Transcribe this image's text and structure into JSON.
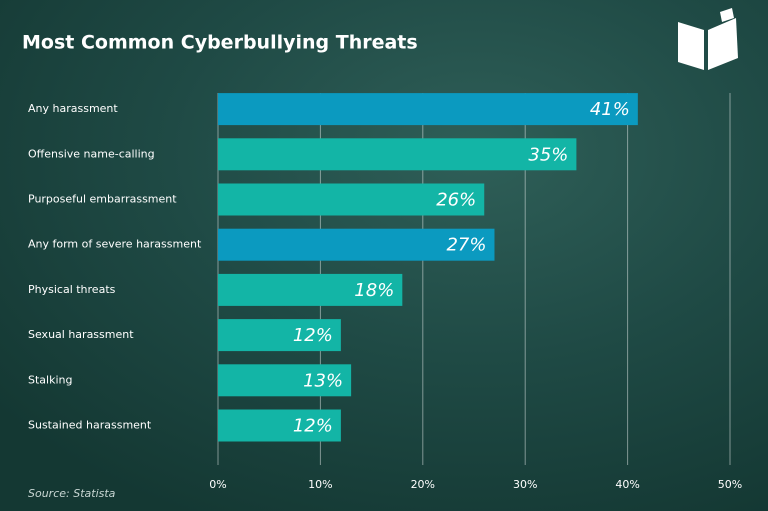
{
  "chart_data": {
    "type": "bar",
    "orientation": "horizontal",
    "title": "Most Common Cyberbullying Threats",
    "source": "Source: Statista",
    "categories": [
      "Any harassment",
      "Offensive name-calling",
      "Purposeful embarrassment",
      "Any form of severe harassment",
      "Physical threats",
      "Sexual harassment",
      "Stalking",
      "Sustained harassment"
    ],
    "values": [
      41,
      35,
      26,
      27,
      18,
      12,
      13,
      12
    ],
    "value_labels": [
      "41%",
      "35%",
      "26%",
      "27%",
      "18%",
      "12%",
      "13%",
      "12%"
    ],
    "colors": [
      "#0b9ac0",
      "#13b5a6",
      "#13b5a6",
      "#0b9ac0",
      "#13b5a6",
      "#13b5a6",
      "#13b5a6",
      "#13b5a6"
    ],
    "xlim": [
      0,
      50
    ],
    "xticks": [
      {
        "value": 0,
        "label": "0%"
      },
      {
        "value": 10,
        "label": "10%"
      },
      {
        "value": 20,
        "label": "20%"
      },
      {
        "value": 30,
        "label": "30%"
      },
      {
        "value": 40,
        "label": "40%"
      },
      {
        "value": 50,
        "label": "50%"
      }
    ],
    "grid": true
  }
}
